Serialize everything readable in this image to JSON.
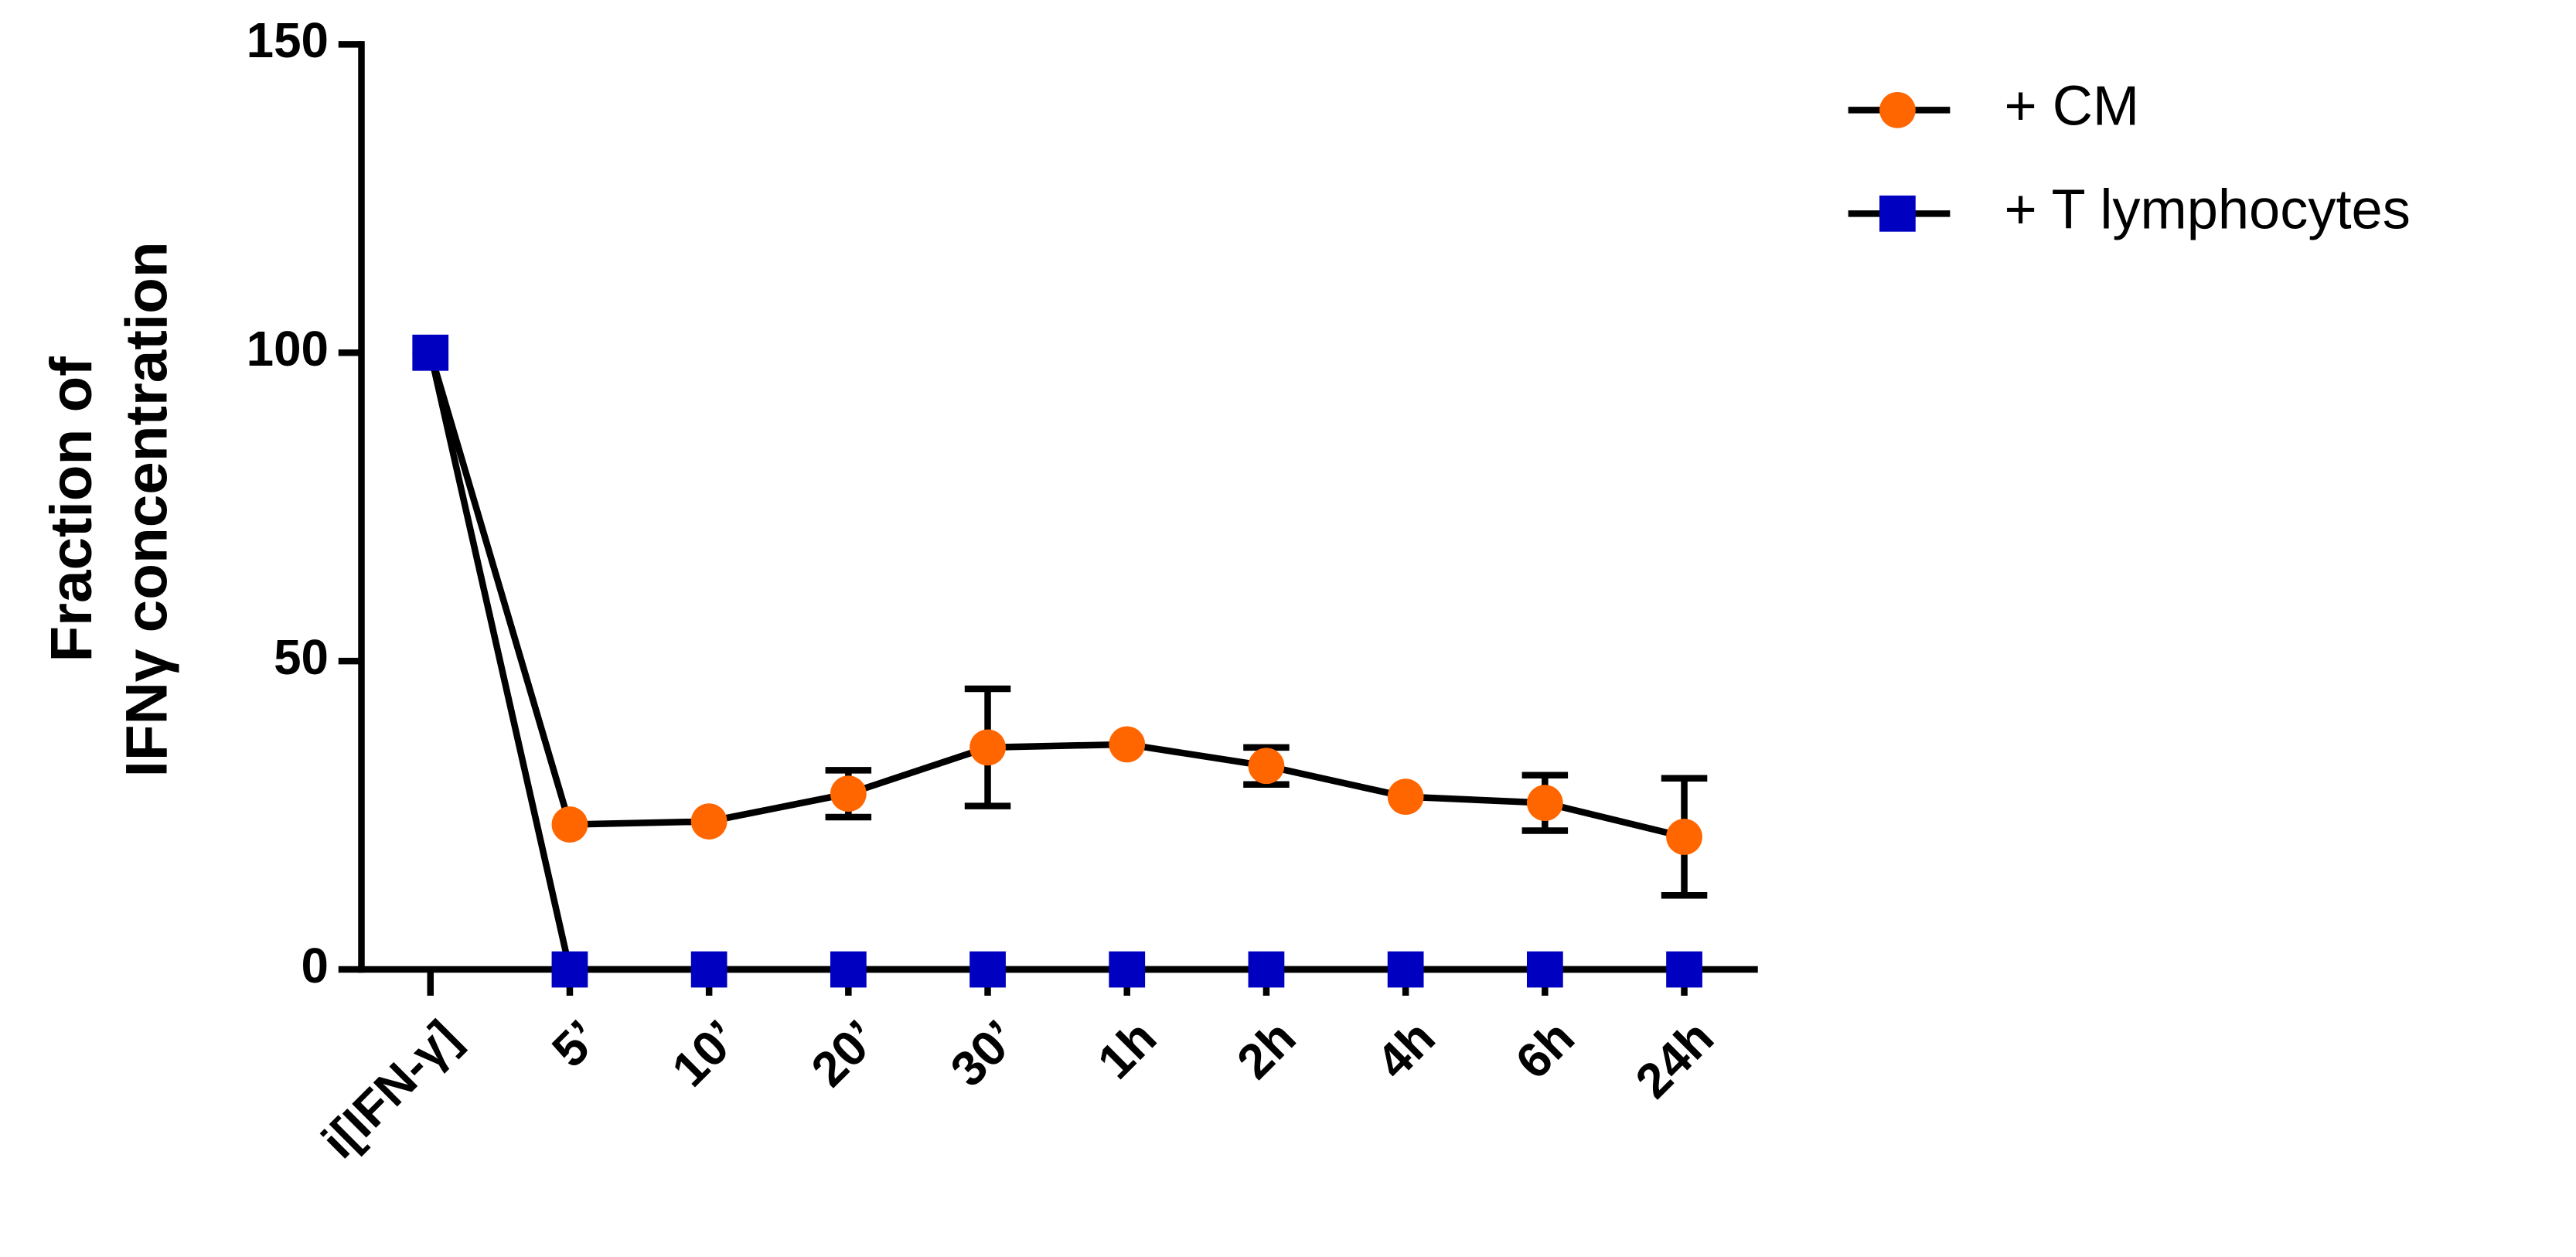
{
  "chart_data": {
    "type": "line",
    "ylabel": [
      "Fraction of",
      "IFNγ concentration"
    ],
    "categories": [
      "i[IFN-γ]",
      "5’",
      "10’",
      "20’",
      "30’",
      "1h",
      "2h",
      "4h",
      "6h",
      "24h"
    ],
    "series": [
      {
        "name": "+ CM",
        "color": "#ff6600",
        "marker": "circle",
        "values": [
          100,
          23.5,
          24,
          28.5,
          36,
          36.5,
          33,
          28,
          27,
          21.5
        ],
        "errors": [
          null,
          null,
          null,
          3.8,
          9.5,
          null,
          3,
          null,
          4.5,
          9.5
        ]
      },
      {
        "name": "+ T lymphocytes",
        "color": "#0000c0",
        "marker": "square",
        "values": [
          100,
          0,
          0,
          0,
          0,
          0,
          0,
          0,
          0,
          0
        ]
      }
    ],
    "line_color": "#000000",
    "ylim": [
      0,
      150
    ],
    "yticks": [
      0,
      50,
      100,
      150
    ],
    "grid": false,
    "legend": "top-right"
  }
}
